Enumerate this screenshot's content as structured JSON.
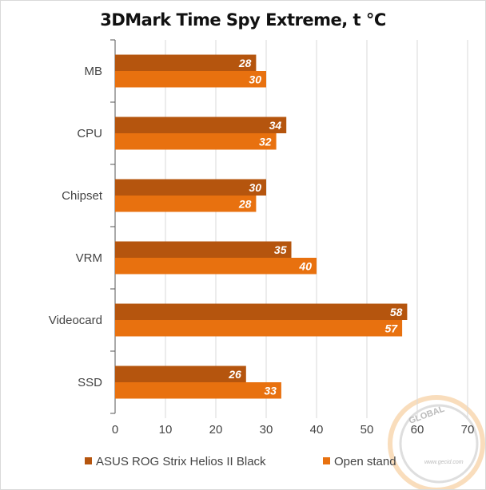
{
  "chart_data": {
    "type": "bar",
    "orientation": "horizontal",
    "title": "3DMark Time Spy Extreme, t °C",
    "categories": [
      "MB",
      "CPU",
      "Chipset",
      "VRM",
      "Videocard",
      "SSD"
    ],
    "series": [
      {
        "name": "ASUS ROG Strix Helios II Black",
        "color": "#b5550e",
        "values": [
          28,
          34,
          30,
          35,
          58,
          26
        ]
      },
      {
        "name": "Open stand",
        "color": "#e8710f",
        "values": [
          30,
          32,
          28,
          40,
          57,
          33
        ]
      }
    ],
    "xlim": [
      0,
      70
    ],
    "xticks": [
      0,
      10,
      20,
      30,
      40,
      50,
      60,
      70
    ],
    "grid": true,
    "legend_placement": "bottom",
    "xlabel": "",
    "ylabel": ""
  },
  "watermark": {
    "text_top": "GLOBAL",
    "text_url": "www.gecid.com"
  }
}
